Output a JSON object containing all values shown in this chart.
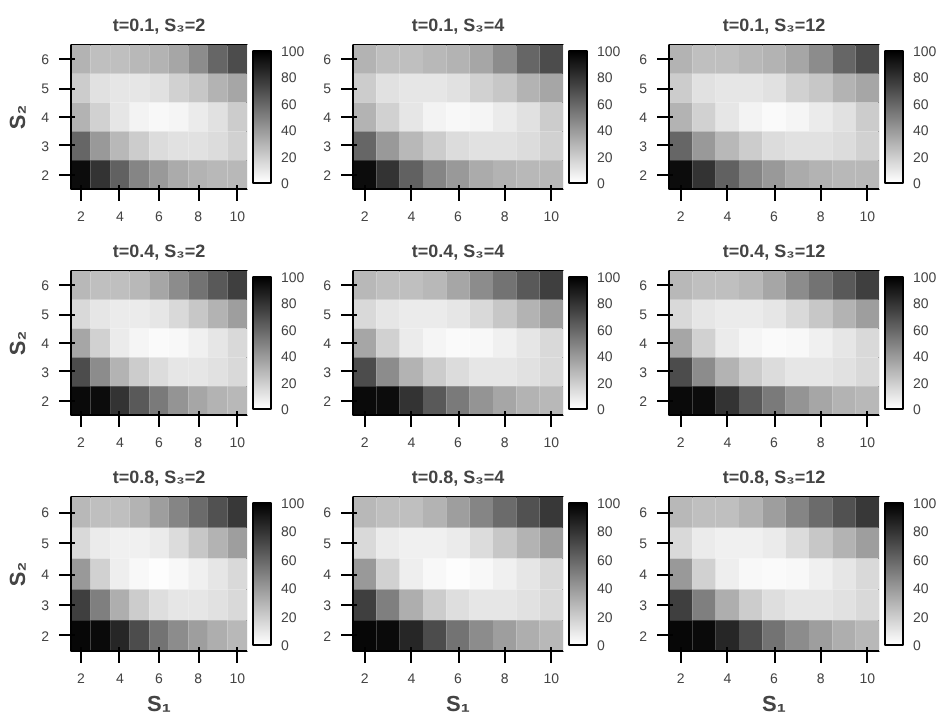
{
  "chart_data": [
    {
      "type": "heatmap",
      "title": "t=0.1, S₃=2",
      "ylabel": "S₂",
      "categories": [
        "2",
        null,
        "4",
        null,
        "6",
        null,
        "8",
        null,
        "10"
      ],
      "y_categories": [
        "6",
        "5",
        "4",
        "3",
        "2"
      ],
      "clim": [
        0,
        100
      ],
      "cticks": [
        0,
        20,
        40,
        60,
        80,
        100
      ],
      "cells": [
        [
          30,
          25,
          25,
          28,
          30,
          35,
          45,
          60,
          70
        ],
        [
          20,
          12,
          10,
          10,
          12,
          18,
          22,
          30,
          35
        ],
        [
          30,
          18,
          10,
          5,
          3,
          4,
          8,
          12,
          20
        ],
        [
          60,
          40,
          28,
          20,
          14,
          12,
          12,
          14,
          18
        ],
        [
          95,
          80,
          62,
          48,
          40,
          33,
          30,
          28,
          28
        ]
      ]
    },
    {
      "type": "heatmap",
      "title": "t=0.1, S₃=4",
      "categories": [
        "2",
        null,
        "4",
        null,
        "6",
        null,
        "8",
        null,
        "10"
      ],
      "y_categories": [
        "6",
        "5",
        "4",
        "3",
        "2"
      ],
      "clim": [
        0,
        100
      ],
      "cticks": [
        0,
        20,
        40,
        60,
        80,
        100
      ],
      "cells": [
        [
          30,
          25,
          25,
          28,
          30,
          35,
          45,
          60,
          70
        ],
        [
          20,
          12,
          10,
          10,
          12,
          18,
          22,
          30,
          35
        ],
        [
          30,
          18,
          10,
          5,
          3,
          4,
          8,
          12,
          20
        ],
        [
          60,
          40,
          28,
          20,
          14,
          12,
          12,
          14,
          18
        ],
        [
          95,
          80,
          62,
          48,
          40,
          33,
          30,
          28,
          28
        ]
      ]
    },
    {
      "type": "heatmap",
      "title": "t=0.1, S₃=12",
      "categories": [
        "2",
        null,
        "4",
        null,
        "6",
        null,
        "8",
        null,
        "10"
      ],
      "y_categories": [
        "6",
        "5",
        "4",
        "3",
        "2"
      ],
      "clim": [
        0,
        100
      ],
      "cticks": [
        0,
        20,
        40,
        60,
        80,
        100
      ],
      "cells": [
        [
          30,
          25,
          25,
          28,
          30,
          35,
          45,
          60,
          70
        ],
        [
          20,
          12,
          10,
          10,
          12,
          18,
          22,
          30,
          35
        ],
        [
          30,
          18,
          10,
          5,
          2,
          4,
          8,
          12,
          20
        ],
        [
          60,
          40,
          28,
          20,
          14,
          12,
          12,
          14,
          18
        ],
        [
          95,
          80,
          62,
          48,
          40,
          33,
          30,
          28,
          28
        ]
      ]
    },
    {
      "type": "heatmap",
      "title": "t=0.4, S₃=2",
      "ylabel": "S₂",
      "categories": [
        "2",
        null,
        "4",
        null,
        "6",
        null,
        "8",
        null,
        "10"
      ],
      "y_categories": [
        "6",
        "5",
        "4",
        "3",
        "2"
      ],
      "clim": [
        0,
        100
      ],
      "cticks": [
        0,
        20,
        40,
        60,
        80,
        100
      ],
      "cells": [
        [
          28,
          25,
          25,
          28,
          35,
          45,
          55,
          65,
          75
        ],
        [
          15,
          10,
          8,
          8,
          10,
          15,
          22,
          30,
          38
        ],
        [
          35,
          18,
          8,
          4,
          2,
          3,
          6,
          10,
          15
        ],
        [
          70,
          45,
          30,
          20,
          14,
          10,
          10,
          12,
          15
        ],
        [
          96,
          95,
          80,
          65,
          52,
          42,
          35,
          30,
          28
        ]
      ]
    },
    {
      "type": "heatmap",
      "title": "t=0.4, S₃=4",
      "categories": [
        "2",
        null,
        "4",
        null,
        "6",
        null,
        "8",
        null,
        "10"
      ],
      "y_categories": [
        "6",
        "5",
        "4",
        "3",
        "2"
      ],
      "clim": [
        0,
        100
      ],
      "cticks": [
        0,
        20,
        40,
        60,
        80,
        100
      ],
      "cells": [
        [
          28,
          25,
          25,
          28,
          35,
          45,
          55,
          65,
          75
        ],
        [
          15,
          10,
          8,
          8,
          10,
          15,
          22,
          30,
          38
        ],
        [
          35,
          18,
          8,
          4,
          2,
          3,
          6,
          10,
          15
        ],
        [
          70,
          45,
          30,
          20,
          14,
          10,
          10,
          12,
          15
        ],
        [
          96,
          95,
          80,
          65,
          52,
          42,
          35,
          30,
          28
        ]
      ]
    },
    {
      "type": "heatmap",
      "title": "t=0.4, S₃=12",
      "categories": [
        "2",
        null,
        "4",
        null,
        "6",
        null,
        "8",
        null,
        "10"
      ],
      "y_categories": [
        "6",
        "5",
        "4",
        "3",
        "2"
      ],
      "clim": [
        0,
        100
      ],
      "cticks": [
        0,
        20,
        40,
        60,
        80,
        100
      ],
      "cells": [
        [
          28,
          25,
          25,
          28,
          35,
          45,
          55,
          65,
          75
        ],
        [
          15,
          10,
          8,
          8,
          10,
          15,
          22,
          30,
          38
        ],
        [
          35,
          18,
          8,
          4,
          2,
          3,
          6,
          10,
          15
        ],
        [
          70,
          45,
          30,
          20,
          14,
          10,
          10,
          12,
          15
        ],
        [
          96,
          95,
          80,
          65,
          52,
          42,
          35,
          30,
          28
        ]
      ]
    },
    {
      "type": "heatmap",
      "title": "t=0.8, S₃=2",
      "xlabel": "S₁",
      "ylabel": "S₂",
      "categories": [
        "2",
        null,
        "4",
        null,
        "6",
        null,
        "8",
        null,
        "10"
      ],
      "y_categories": [
        "6",
        "5",
        "4",
        "3",
        "2"
      ],
      "clim": [
        0,
        100
      ],
      "cticks": [
        0,
        20,
        40,
        60,
        80,
        100
      ],
      "cells": [
        [
          28,
          25,
          25,
          30,
          38,
          48,
          58,
          68,
          78
        ],
        [
          15,
          8,
          6,
          6,
          8,
          14,
          22,
          30,
          38
        ],
        [
          40,
          18,
          7,
          3,
          1,
          3,
          6,
          10,
          15
        ],
        [
          75,
          50,
          32,
          20,
          13,
          10,
          10,
          12,
          15
        ],
        [
          97,
          96,
          85,
          70,
          55,
          45,
          38,
          32,
          28
        ]
      ]
    },
    {
      "type": "heatmap",
      "title": "t=0.8, S₃=4",
      "xlabel": "S₁",
      "categories": [
        "2",
        null,
        "4",
        null,
        "6",
        null,
        "8",
        null,
        "10"
      ],
      "y_categories": [
        "6",
        "5",
        "4",
        "3",
        "2"
      ],
      "clim": [
        0,
        100
      ],
      "cticks": [
        0,
        20,
        40,
        60,
        80,
        100
      ],
      "cells": [
        [
          28,
          25,
          25,
          30,
          38,
          48,
          58,
          68,
          78
        ],
        [
          15,
          8,
          6,
          6,
          8,
          14,
          22,
          30,
          38
        ],
        [
          40,
          18,
          7,
          3,
          1,
          3,
          6,
          10,
          15
        ],
        [
          75,
          50,
          32,
          20,
          13,
          10,
          10,
          12,
          15
        ],
        [
          97,
          96,
          85,
          70,
          55,
          45,
          38,
          32,
          28
        ]
      ]
    },
    {
      "type": "heatmap",
      "title": "t=0.8, S₃=12",
      "xlabel": "S₁",
      "categories": [
        "2",
        null,
        "4",
        null,
        "6",
        null,
        "8",
        null,
        "10"
      ],
      "y_categories": [
        "6",
        "5",
        "4",
        "3",
        "2"
      ],
      "clim": [
        0,
        100
      ],
      "cticks": [
        0,
        20,
        40,
        60,
        80,
        100
      ],
      "cells": [
        [
          28,
          25,
          25,
          30,
          38,
          48,
          58,
          68,
          78
        ],
        [
          15,
          8,
          6,
          6,
          8,
          14,
          22,
          30,
          38
        ],
        [
          40,
          18,
          7,
          3,
          2,
          3,
          6,
          10,
          15
        ],
        [
          75,
          50,
          32,
          20,
          13,
          10,
          10,
          12,
          15
        ],
        [
          97,
          96,
          85,
          70,
          55,
          45,
          38,
          32,
          28
        ]
      ]
    }
  ]
}
